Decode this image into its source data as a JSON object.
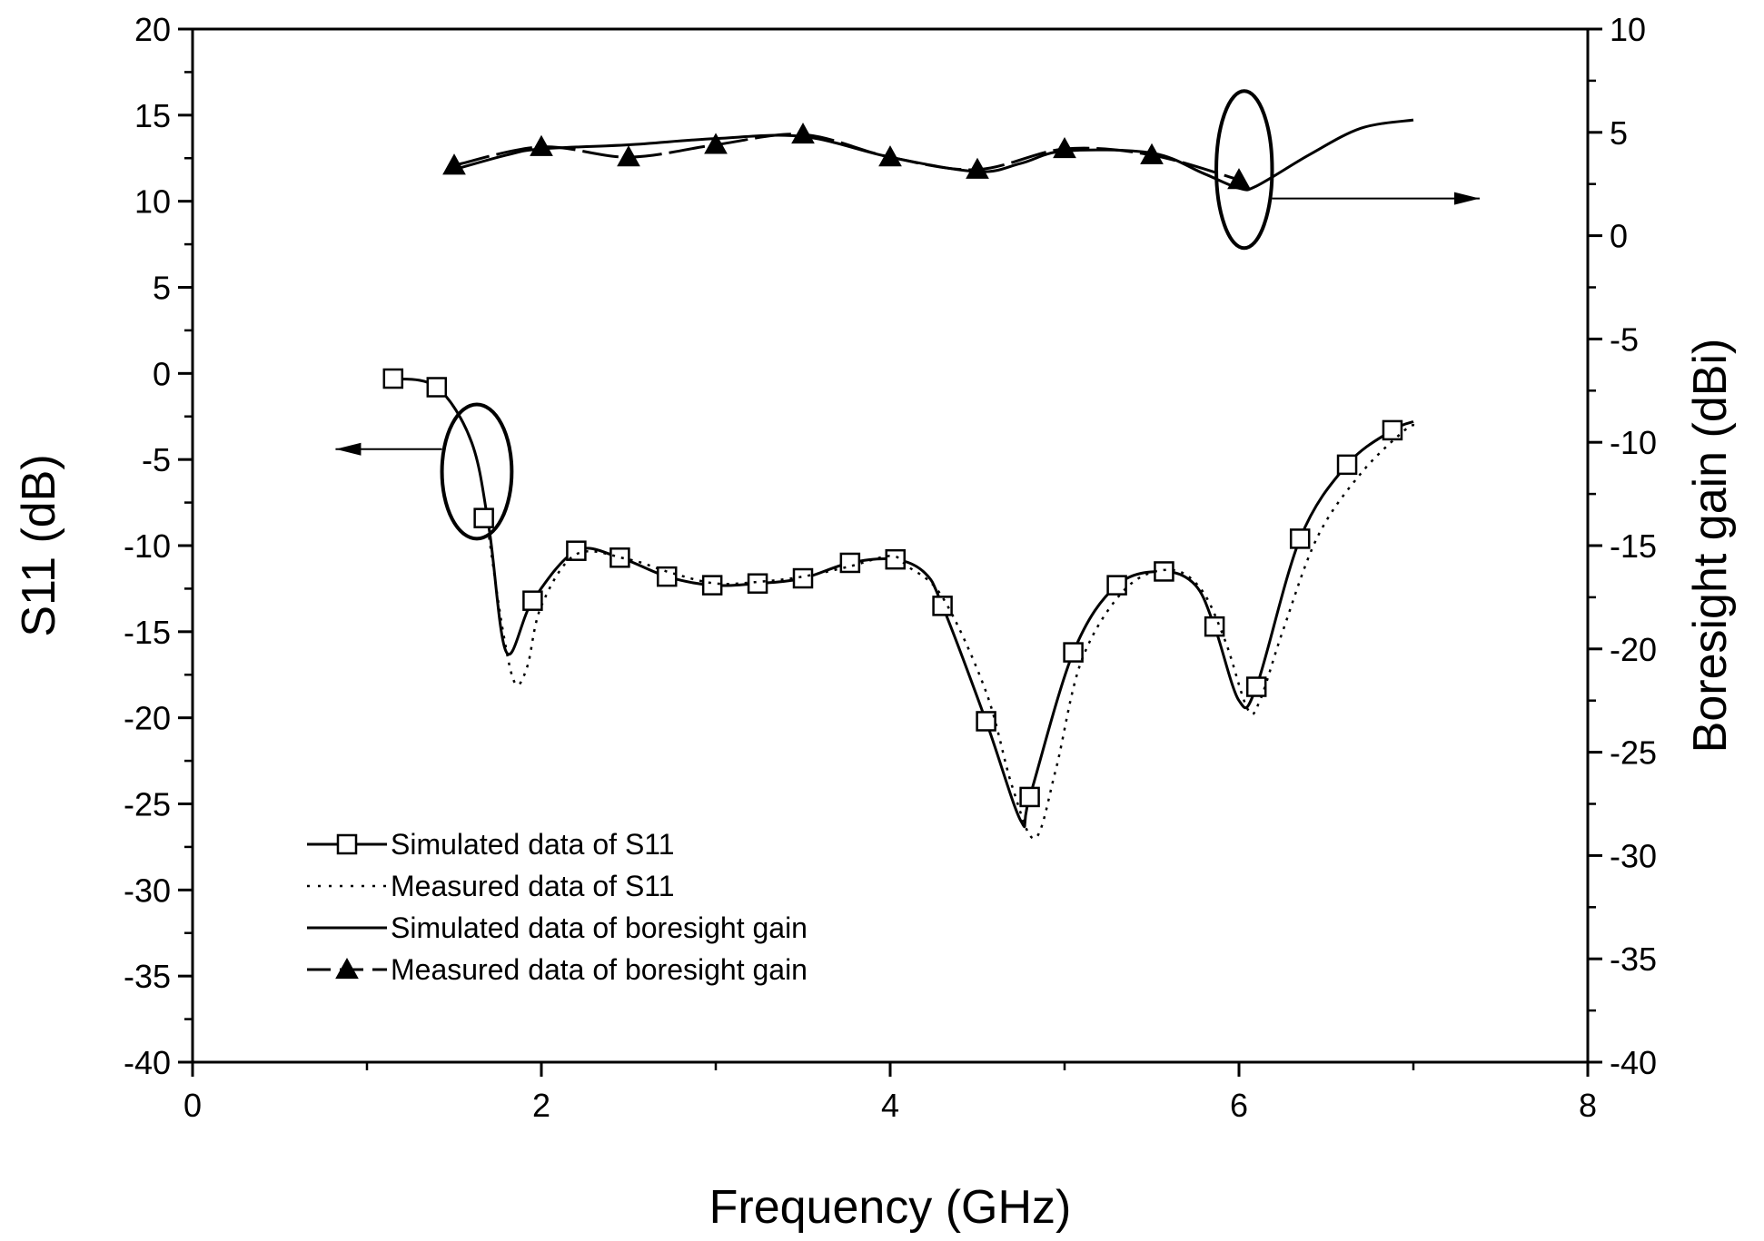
{
  "chart_data": {
    "type": "line",
    "xlabel": "Frequency (GHz)",
    "ylabel_left": "S11 (dB)",
    "ylabel_right": "Boresight gain (dBi)",
    "xlim": [
      0,
      8
    ],
    "ylim_left": [
      -40,
      20
    ],
    "ylim_right": [
      -40,
      10
    ],
    "x_ticks": [
      0,
      2,
      4,
      6,
      8
    ],
    "y_left_ticks": [
      20,
      15,
      10,
      5,
      0,
      -5,
      -10,
      -15,
      -20,
      -25,
      -30,
      -35,
      -40
    ],
    "y_right_ticks": [
      10,
      5,
      0,
      -5,
      -10,
      -15,
      -20,
      -25,
      -30,
      -35,
      -40
    ],
    "legend": [
      "Simulated data of S11",
      "Measured data of S11",
      "Simulated data of boresight gain",
      "Measured data of boresight gain"
    ],
    "series": [
      {
        "name": "Simulated data of S11",
        "axis": "left",
        "style": "solid-square",
        "x": [
          1.15,
          1.4,
          1.6,
          1.7,
          1.8,
          1.95,
          2.2,
          2.45,
          2.72,
          2.98,
          3.24,
          3.5,
          3.77,
          4.03,
          4.2,
          4.3,
          4.55,
          4.75,
          4.8,
          5.05,
          5.3,
          5.57,
          5.75,
          5.86,
          6.0,
          6.1,
          6.35,
          6.62,
          6.88,
          7.0
        ],
        "y": [
          -0.3,
          -0.8,
          -4.0,
          -9.0,
          -16.2,
          -13.2,
          -10.3,
          -10.7,
          -11.8,
          -12.3,
          -12.2,
          -11.9,
          -11.0,
          -10.8,
          -11.6,
          -13.5,
          -20.2,
          -26.0,
          -24.6,
          -16.2,
          -12.3,
          -11.5,
          -12.3,
          -14.7,
          -19.0,
          -18.2,
          -9.6,
          -5.3,
          -3.3,
          -2.8
        ],
        "markers_x": [
          1.15,
          1.4,
          1.67,
          1.95,
          2.2,
          2.45,
          2.72,
          2.98,
          3.24,
          3.5,
          3.77,
          4.03,
          4.3,
          4.55,
          4.8,
          5.05,
          5.3,
          5.57,
          5.86,
          6.1,
          6.35,
          6.62,
          6.88
        ],
        "markers_y": [
          -0.3,
          -0.8,
          -8.4,
          -13.2,
          -10.3,
          -10.7,
          -11.8,
          -12.3,
          -12.2,
          -11.9,
          -11.0,
          -10.8,
          -13.5,
          -20.2,
          -24.6,
          -16.2,
          -12.3,
          -11.5,
          -14.7,
          -18.2,
          -9.6,
          -5.3,
          -3.3
        ]
      },
      {
        "name": "Measured data of S11",
        "axis": "left",
        "style": "dotted",
        "x": [
          1.7,
          1.78,
          1.85,
          1.92,
          2.0,
          2.2,
          2.5,
          2.75,
          3.0,
          3.25,
          3.5,
          3.77,
          4.0,
          4.1,
          4.3,
          4.55,
          4.7,
          4.83,
          4.95,
          5.1,
          5.35,
          5.6,
          5.78,
          5.92,
          6.05,
          6.12,
          6.25,
          6.45,
          6.7,
          6.95,
          7.02
        ],
        "y": [
          -9.5,
          -15.0,
          -18.0,
          -17.0,
          -13.5,
          -10.5,
          -10.8,
          -11.6,
          -12.2,
          -12.1,
          -11.8,
          -11.2,
          -10.6,
          -11.2,
          -13.0,
          -18.5,
          -24.0,
          -27.0,
          -23.0,
          -16.6,
          -12.5,
          -11.4,
          -12.5,
          -15.5,
          -19.5,
          -19.0,
          -15.0,
          -9.5,
          -5.8,
          -3.3,
          -3.0
        ]
      },
      {
        "name": "Simulated data of boresight gain",
        "axis": "right",
        "style": "solid",
        "x": [
          1.5,
          1.8,
          2.0,
          2.5,
          3.0,
          3.5,
          4.0,
          4.5,
          4.75,
          5.0,
          5.5,
          5.8,
          6.0,
          6.1,
          6.4,
          6.7,
          7.0
        ],
        "y": [
          3.2,
          3.9,
          4.2,
          4.4,
          4.7,
          4.8,
          3.8,
          3.1,
          3.5,
          4.1,
          4.0,
          3.0,
          2.3,
          2.4,
          3.9,
          5.2,
          5.6
        ]
      },
      {
        "name": "Measured data of boresight gain",
        "axis": "right",
        "style": "dashed-triangle",
        "x": [
          1.5,
          2.0,
          2.5,
          3.0,
          3.5,
          4.0,
          4.5,
          5.0,
          5.5,
          6.0
        ],
        "y": [
          3.4,
          4.3,
          3.8,
          4.4,
          4.9,
          3.8,
          3.2,
          4.2,
          3.9,
          2.7
        ]
      }
    ],
    "annotations": [
      {
        "type": "ellipse",
        "target": "left-axis",
        "x": 1.63,
        "y": -5.7,
        "rx": 0.2,
        "ry": 3.9,
        "arrow_to_x": 0.82,
        "arrow_y": -4.4
      },
      {
        "type": "ellipse",
        "target": "right-axis",
        "x": 6.03,
        "y": 3.2,
        "rx": 0.16,
        "ry": 3.8,
        "arrow_to_x": 7.38,
        "arrow_y": 1.8
      }
    ]
  }
}
